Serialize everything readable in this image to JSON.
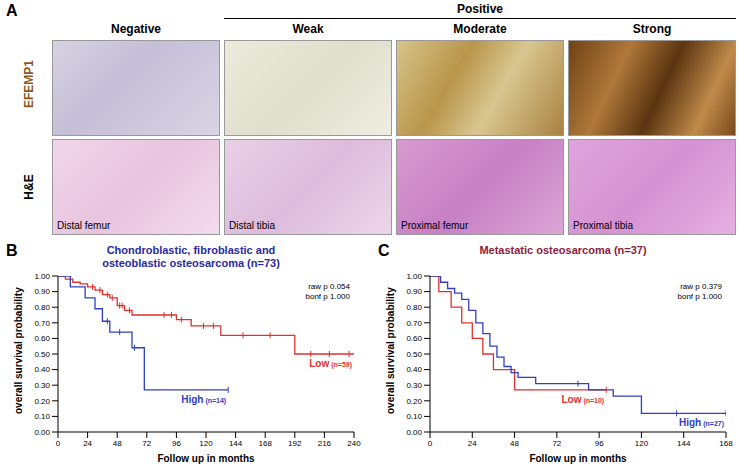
{
  "panel_a": {
    "label": "A",
    "rows": [
      "EFEMP1",
      "H&E"
    ],
    "groups": [
      {
        "columns": [
          {
            "header": "Negative",
            "caption": "Distal femur"
          }
        ]
      },
      {
        "header": "Positive",
        "columns": [
          {
            "header": "Weak",
            "caption": "Distal tibia"
          },
          {
            "header": "Moderate",
            "caption": "Proximal femur"
          },
          {
            "header": "Strong",
            "caption": "Proximal tibia"
          }
        ]
      }
    ]
  },
  "chart_data": [
    {
      "panel": "B",
      "type": "line",
      "line_style": "step",
      "marker": "|",
      "title": "Chondroblastic, fibroblastic and osteoblastic osteosarcoma (n=73)",
      "title_color": "#2a2aa0",
      "xlabel": "Follow up in months",
      "ylabel": "overall survival probability",
      "xlim": [
        0,
        240
      ],
      "xticks": [
        0,
        24,
        48,
        72,
        96,
        120,
        144,
        168,
        192,
        216,
        240
      ],
      "ylim": [
        0,
        1
      ],
      "yticks": [
        {
          "value": 0,
          "label": "0.00"
        },
        {
          "value": 0.1,
          "label": "0.10"
        },
        {
          "value": 0.2,
          "label": "0.20"
        },
        {
          "value": 0.3,
          "label": "0.30"
        },
        {
          "value": 0.4,
          "label": "0.40"
        },
        {
          "value": 0.5,
          "label": "0.50"
        },
        {
          "value": 0.6,
          "label": "0.60"
        },
        {
          "value": 0.7,
          "label": "0.70"
        },
        {
          "value": 0.8,
          "label": "0.80"
        },
        {
          "value": 0.9,
          "label": "0.90"
        },
        {
          "value": 1,
          "label": "1.00"
        }
      ],
      "annotations": [
        "raw p 0.054",
        "bonf p 1.000"
      ],
      "series": [
        {
          "name": "Low",
          "n_label": "(n=59)",
          "color": "#e03030",
          "x": [
            0,
            6,
            12,
            18,
            24,
            30,
            36,
            42,
            48,
            54,
            60,
            96,
            108,
            132,
            192,
            240
          ],
          "values": [
            1,
            0.98,
            0.96,
            0.95,
            0.93,
            0.91,
            0.88,
            0.86,
            0.81,
            0.78,
            0.75,
            0.72,
            0.68,
            0.62,
            0.5,
            0.5
          ],
          "censored": [
            28,
            34,
            40,
            44,
            50,
            52,
            58,
            86,
            92,
            100,
            118,
            126,
            150,
            172,
            205,
            220,
            236
          ]
        },
        {
          "name": "High",
          "n_label": "(n=14)",
          "color": "#3040c0",
          "x": [
            0,
            10,
            22,
            30,
            36,
            42,
            60,
            70,
            138
          ],
          "values": [
            1,
            0.93,
            0.86,
            0.79,
            0.71,
            0.64,
            0.54,
            0.27,
            0.27
          ],
          "censored": [
            40,
            50,
            62,
            138
          ]
        }
      ]
    },
    {
      "panel": "C",
      "type": "line",
      "line_style": "step",
      "marker": "|",
      "title": "Metastatic osteosarcoma (n=37)",
      "title_color": "#8b2040",
      "xlabel": "Follow up in months",
      "ylabel": "overall survival probability",
      "xlim": [
        0,
        168
      ],
      "xticks": [
        0,
        24,
        48,
        72,
        96,
        120,
        144,
        168
      ],
      "ylim": [
        0,
        1
      ],
      "yticks": [
        {
          "value": 0,
          "label": "0.00"
        },
        {
          "value": 0.1,
          "label": "0.10"
        },
        {
          "value": 0.2,
          "label": "0.20"
        },
        {
          "value": 0.3,
          "label": "0.30"
        },
        {
          "value": 0.4,
          "label": "0.40"
        },
        {
          "value": 0.5,
          "label": "0.50"
        },
        {
          "value": 0.6,
          "label": "0.60"
        },
        {
          "value": 0.7,
          "label": "0.70"
        },
        {
          "value": 0.8,
          "label": "0.80"
        },
        {
          "value": 0.9,
          "label": "0.90"
        },
        {
          "value": 1,
          "label": "1.00"
        }
      ],
      "annotations": [
        "raw p 0.379",
        "bonf p 1.000"
      ],
      "series": [
        {
          "name": "Low",
          "n_label": "(n=10)",
          "color": "#e03030",
          "x": [
            0,
            5,
            12,
            18,
            24,
            30,
            36,
            48,
            100
          ],
          "values": [
            1,
            0.9,
            0.8,
            0.7,
            0.6,
            0.5,
            0.4,
            0.27,
            0.27
          ],
          "censored": [
            100
          ]
        },
        {
          "name": "High",
          "n_label": "(n=27)",
          "color": "#3040c0",
          "x": [
            0,
            6,
            10,
            14,
            18,
            22,
            26,
            30,
            34,
            38,
            42,
            46,
            50,
            60,
            90,
            104,
            120,
            168
          ],
          "values": [
            1,
            0.96,
            0.92,
            0.89,
            0.85,
            0.78,
            0.7,
            0.63,
            0.55,
            0.48,
            0.42,
            0.38,
            0.35,
            0.31,
            0.27,
            0.23,
            0.12,
            0.12
          ],
          "censored": [
            84,
            140,
            168
          ]
        }
      ]
    }
  ]
}
